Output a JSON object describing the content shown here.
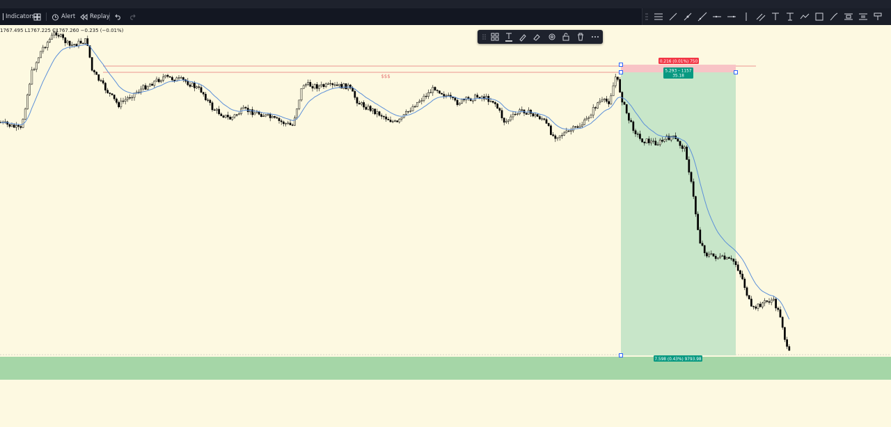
{
  "toolbar": {
    "indicators_label": "Indicators",
    "alert_label": "Alert",
    "replay_label": "Replay"
  },
  "ohlc": {
    "text": "1767.495 L1767.225 C1767.260 −0.235 (−0.01%)"
  },
  "chart": {
    "level_label": "$$$",
    "position": {
      "stop_label": "0.216 (0.01%) 750",
      "entry_label_line1": "5.293 – 1157",
      "entry_label_line2": "35.18",
      "target_label": "7.598 (0.43%) 9793.98"
    }
  },
  "colors": {
    "background": "#fdf9e1",
    "stop_red": "#f23645",
    "target_teal": "#089981",
    "profit_zone": "#c8e6c9",
    "ema_line": "#5b8fd9",
    "support_zone": "#a5d6a7"
  },
  "icons": [
    "indicators-icon",
    "templates-icon",
    "alert-icon",
    "replay-icon",
    "undo-icon",
    "redo-icon",
    "text-icon",
    "brush-icon",
    "settings-icon",
    "lock-icon",
    "trash-icon",
    "more-icon"
  ]
}
